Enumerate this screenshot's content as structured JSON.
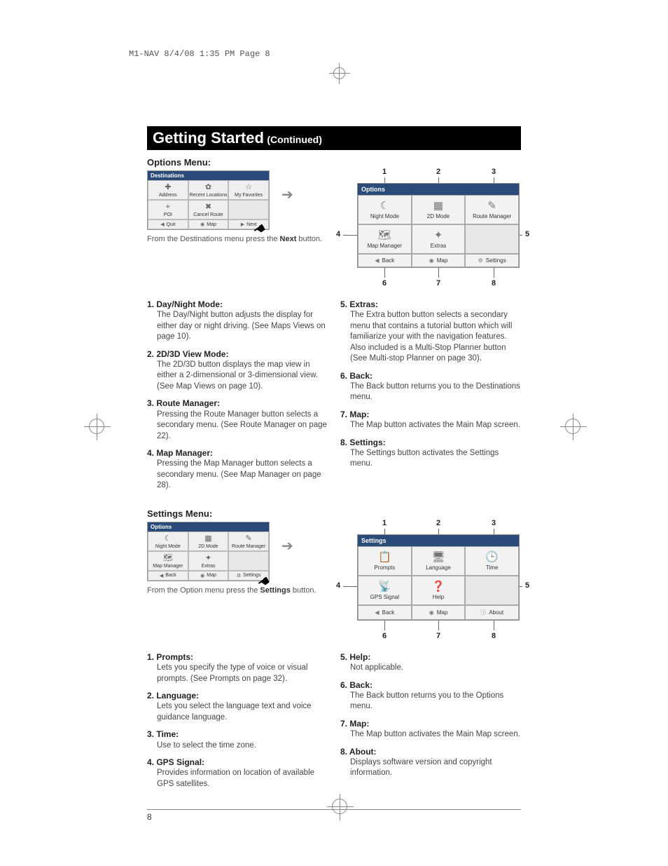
{
  "slug": "M1-NAV  8/4/08  1:35 PM  Page 8",
  "page_number": "8",
  "title": {
    "main": "Getting Started",
    "sub": "(Continued)"
  },
  "options_section": {
    "heading": "Options Menu:",
    "small_screenshot": {
      "titlebar": "Destinations",
      "cells": [
        {
          "icon": "✚",
          "label": "Address"
        },
        {
          "icon": "✿",
          "label": "Recent Locations"
        },
        {
          "icon": "☆",
          "label": "My Favorites"
        },
        {
          "icon": "⌖",
          "label": "POI"
        },
        {
          "icon": "✖",
          "label": "Cancel Route"
        },
        {
          "icon": "",
          "label": ""
        }
      ],
      "bottom": [
        {
          "tri": "◀",
          "icon": "",
          "label": "Quit"
        },
        {
          "tri": "",
          "icon": "◉",
          "label": "Map"
        },
        {
          "tri": "▶",
          "icon": "",
          "label": "Next"
        }
      ]
    },
    "caption_pre": "From the Destinations menu press the ",
    "caption_bold": "Next",
    "caption_post": " button.",
    "large_screenshot": {
      "titlebar": "Options",
      "cells": [
        {
          "icon": "☾",
          "label": "Night Mode"
        },
        {
          "icon": "▦",
          "label": "2D Mode"
        },
        {
          "icon": "✎",
          "label": "Route Manager"
        },
        {
          "icon": "🗺",
          "label": "Map Manager"
        },
        {
          "icon": "✦",
          "label": "Extras"
        },
        {
          "icon": "",
          "label": ""
        }
      ],
      "bottom": [
        {
          "tri": "◀",
          "label": "Back"
        },
        {
          "icon": "◉",
          "label": "Map"
        },
        {
          "icon": "⚙",
          "label": "Settings"
        }
      ]
    },
    "callouts": [
      "1",
      "2",
      "3",
      "4",
      "5",
      "6",
      "7",
      "8"
    ],
    "items_left": [
      {
        "hd": "1. Day/Night Mode:",
        "bd": "The Day/Night button adjusts the display for either day or night driving. (See Maps Views on page 10)."
      },
      {
        "hd": "2. 2D/3D View Mode:",
        "bd": "The 2D/3D button displays the map view in either a 2-dimensional or 3-dimensional view. (See Map Views on page 10)."
      },
      {
        "hd": "3. Route Manager:",
        "bd": "Pressing the Route Manager button selects a secondary menu. (See Route Manager on page 22)."
      },
      {
        "hd": "4. Map Manager:",
        "bd": "Pressing the Map Manager button selects a secondary menu. (See Map Manager on page 28)."
      }
    ],
    "items_right": [
      {
        "hd": "5. Extras:",
        "bd": "The Extra button button selects a secondary menu that contains a tutorial button which will familiarize your with the navigation features. Also included is a Multi-Stop Planner button (See Multi-stop Planner on page 30)."
      },
      {
        "hd": "6. Back:",
        "bd": "The Back button returns you to the Destinations menu."
      },
      {
        "hd": "7. Map:",
        "bd": "The Map button activates the Main Map screen."
      },
      {
        "hd": "8. Settings:",
        "bd": "The Settings button activates the Settings menu."
      }
    ]
  },
  "settings_section": {
    "heading": "Settings Menu:",
    "small_screenshot": {
      "titlebar": "Options",
      "cells": [
        {
          "icon": "☾",
          "label": "Night Mode"
        },
        {
          "icon": "▦",
          "label": "2D Mode"
        },
        {
          "icon": "✎",
          "label": "Route Manager"
        },
        {
          "icon": "🗺",
          "label": "Map Manager"
        },
        {
          "icon": "✦",
          "label": "Extras"
        },
        {
          "icon": "",
          "label": ""
        }
      ],
      "bottom": [
        {
          "tri": "◀",
          "icon": "",
          "label": "Back"
        },
        {
          "tri": "",
          "icon": "◉",
          "label": "Map"
        },
        {
          "tri": "",
          "icon": "⚙",
          "label": "Settings"
        }
      ]
    },
    "caption_pre": "From the Option menu press the ",
    "caption_bold": "Settings",
    "caption_post": " button.",
    "large_screenshot": {
      "titlebar": "Settings",
      "cells": [
        {
          "icon": "📋",
          "label": "Prompts"
        },
        {
          "icon": "🖥",
          "label": "Language"
        },
        {
          "icon": "🕒",
          "label": "Time"
        },
        {
          "icon": "📡",
          "label": "GPS Signal"
        },
        {
          "icon": "❓",
          "label": "Help"
        },
        {
          "icon": "",
          "label": ""
        }
      ],
      "bottom": [
        {
          "tri": "◀",
          "label": "Back"
        },
        {
          "icon": "◉",
          "label": "Map"
        },
        {
          "icon": "ⓘ",
          "label": "About"
        }
      ]
    },
    "callouts": [
      "1",
      "2",
      "3",
      "4",
      "5",
      "6",
      "7",
      "8"
    ],
    "items_left": [
      {
        "hd": "1. Prompts:",
        "bd": "Lets you specify the type of voice or visual prompts. (See Prompts on page 32)."
      },
      {
        "hd": "2. Language:",
        "bd": "Lets you select the language text and voice guidance language."
      },
      {
        "hd": "3. Time:",
        "bd": "Use to select the time zone."
      },
      {
        "hd": "4. GPS Signal:",
        "bd": "Provides information on location of available GPS satellites."
      }
    ],
    "items_right": [
      {
        "hd": "5. Help:",
        "bd": "Not applicable."
      },
      {
        "hd": "6. Back:",
        "bd": "The Back button returns you to the Options menu."
      },
      {
        "hd": "7. Map:",
        "bd": "The Map button activates the Main Map screen."
      },
      {
        "hd": "8. About:",
        "bd": "Displays software version and copyright information."
      }
    ]
  }
}
